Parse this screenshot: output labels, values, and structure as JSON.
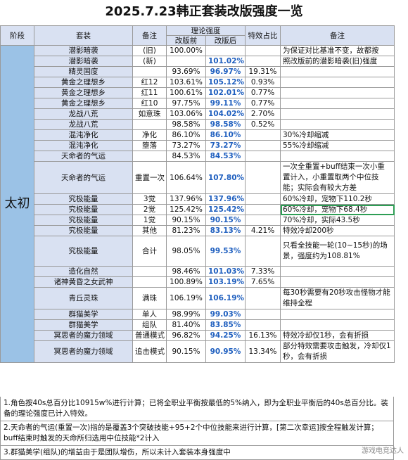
{
  "title": "2025.7.23韩正套装改版强度一览",
  "headers": {
    "stage": "阶段",
    "set": "套装",
    "remark": "备注",
    "theory": "理论强度",
    "before": "改版前",
    "after": "改版后",
    "ratio": "特效占比",
    "note": "备注"
  },
  "stage_label": "太初",
  "rows": [
    {
      "set": "潜影暗袭",
      "remark": "(旧)",
      "before": "100.00%",
      "after": "",
      "ratio": "",
      "note": "为保证对比基准不变，故都按"
    },
    {
      "set": "潜影暗袭",
      "remark": "(新)",
      "before": "",
      "after": "101.02%",
      "ratio": "",
      "note": "照改版前的潜影暗袭(旧)强度"
    },
    {
      "set": "精灵国度",
      "remark": "",
      "before": "93.69%",
      "after": "96.97%",
      "ratio": "19.31%",
      "note": ""
    },
    {
      "set": "黄金之理想乡",
      "remark": "红12",
      "before": "103.61%",
      "after": "105.12%",
      "ratio": "0.93%",
      "note": ""
    },
    {
      "set": "黄金之理想乡",
      "remark": "红11",
      "before": "100.61%",
      "after": "102.01%",
      "ratio": "0.77%",
      "note": ""
    },
    {
      "set": "黄金之理想乡",
      "remark": "红10",
      "before": "97.75%",
      "after": "99.11%",
      "ratio": "0.77%",
      "note": ""
    },
    {
      "set": "龙战八荒",
      "remark": "如意珠",
      "before": "103.06%",
      "after": "104.02%",
      "ratio": "2.70%",
      "note": ""
    },
    {
      "set": "龙战八荒",
      "remark": "",
      "before": "98.58%",
      "after": "98.58%",
      "ratio": "0.52%",
      "note": ""
    },
    {
      "set": "混沌净化",
      "remark": "净化",
      "before": "86.10%",
      "after": "86.10%",
      "ratio": "",
      "note": "30%冷却缩减"
    },
    {
      "set": "混沌净化",
      "remark": "堕落",
      "before": "73.27%",
      "after": "73.27%",
      "ratio": "",
      "note": "55%冷却缩减"
    },
    {
      "set": "天命者的气运",
      "remark": "",
      "before": "84.53%",
      "after": "84.53%",
      "ratio": "",
      "note": ""
    },
    {
      "set": "天命者的气运",
      "remark": "重置一次",
      "before": "106.64%",
      "after": "107.80%",
      "ratio": "",
      "note": "一次全重置+buff结束一次小重置计入，小重置取两个中位技能；实际会有较大方差",
      "tall": 3
    },
    {
      "set": "究极能量",
      "remark": "3觉",
      "before": "137.96%",
      "after": "137.96%",
      "ratio": "",
      "note": "60%冷却，宠物下110.2秒"
    },
    {
      "set": "究极能量",
      "remark": "2觉",
      "before": "125.42%",
      "after": "125.42%",
      "ratio": "",
      "note": "60%冷却，宠物下68.4秒",
      "selected": true
    },
    {
      "set": "究极能量",
      "remark": "1觉",
      "before": "90.15%",
      "after": "90.15%",
      "ratio": "",
      "note": "70%冷却，实际43.5秒"
    },
    {
      "set": "究极能量",
      "remark": "其他",
      "before": "81.23%",
      "after": "83.13%",
      "ratio": "4.21%",
      "note": "特效冷却200秒"
    },
    {
      "set": "究极能量",
      "remark": "合计",
      "before": "98.05%",
      "after": "99.53%",
      "ratio": "",
      "note": "只看全技能一轮(10~15秒)的场景，强度约为108.81%",
      "tall": 3
    },
    {
      "set": "造化自然",
      "remark": "",
      "before": "98.46%",
      "after": "101.03%",
      "ratio": "7.33%",
      "note": ""
    },
    {
      "set": "诸神黄昏之女武神",
      "remark": "",
      "before": "100.89%",
      "after": "103.19%",
      "ratio": "7.65%",
      "note": ""
    },
    {
      "set": "青丘灵珠",
      "remark": "满珠",
      "before": "106.19%",
      "after": "106.19%",
      "ratio": "",
      "note": "每30秒需要有20秒攻击怪物才能维持全程",
      "tall": 2
    },
    {
      "set": "群猫美学",
      "remark": "单人",
      "before": "98.99%",
      "after": "99.03%",
      "ratio": "",
      "note": ""
    },
    {
      "set": "群猫美学",
      "remark": "组队",
      "before": "81.40%",
      "after": "83.85%",
      "ratio": "",
      "note": ""
    },
    {
      "set": "冥思者的魔力领域",
      "remark": "普通模式",
      "before": "96.82%",
      "after": "94.25%",
      "ratio": "16.13%",
      "note": "特效冷却仅1秒，会有折损"
    },
    {
      "set": "冥思者的魔力领域",
      "remark": "追击模式",
      "before": "90.15%",
      "after": "90.95%",
      "ratio": "13.34%",
      "note": "部分特效需要攻击触发，冷却仅1秒，会有折损",
      "tall": 2
    }
  ],
  "footnotes": [
    "1.角色按40s总百分比10915w%进行计算；已将全职业平衡按最低的5%纳入，即为全职业平衡后的40s总百分比。装备的理论强度已计入特效。",
    "2.天命者的气运(重置一次)指的是覆盖3个突破技能+95+2个中位技能来进行计算，[第二次幸运]按全程触发计算；buff结束时触发的天命所归选用中位技能*2计入",
    "3.群猫美学(组队)的增益由于是团队增伤，所以未计入套装本身强度中"
  ],
  "watermark": "游戏电竞达人"
}
